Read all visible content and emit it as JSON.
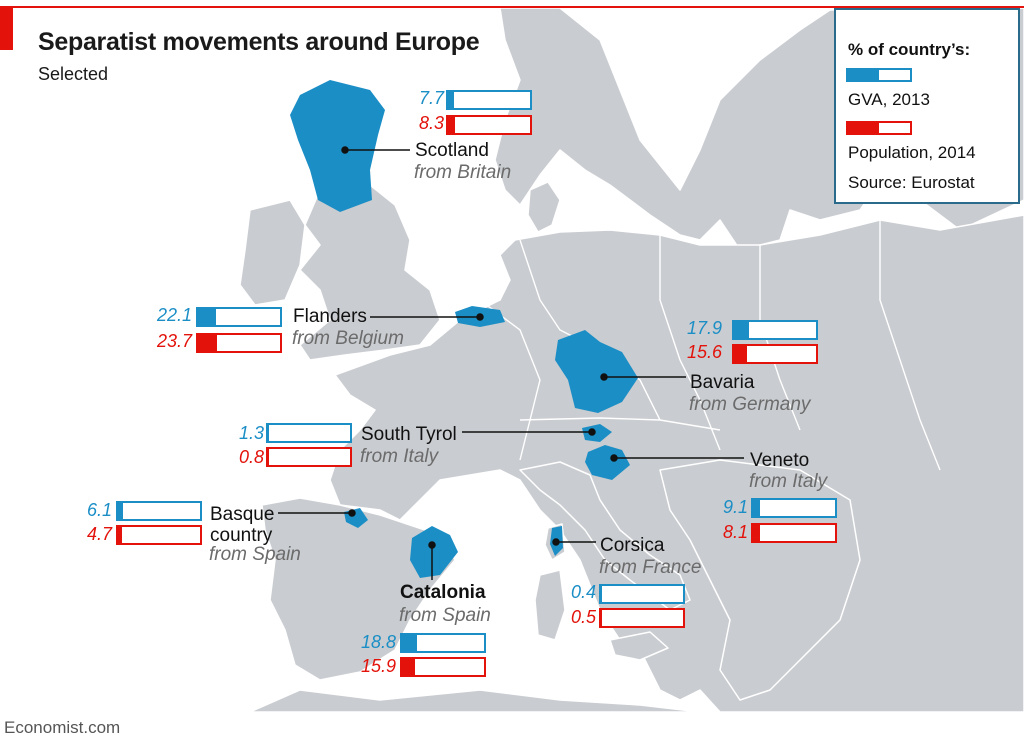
{
  "title": "Separatist movements around Europe",
  "subtitle": "Selected",
  "source_credit": "Economist.com",
  "colors": {
    "gva": "#1b8ec6",
    "population": "#e3120b",
    "land": "#c9ccd0",
    "sea": "#ffffff",
    "highlight": "#1b8ec6"
  },
  "legend": {
    "title": "% of country’s:",
    "gva_label": "GVA, 2013",
    "population_label": "Population, 2014",
    "source": "Source: Eurostat"
  },
  "regions": [
    {
      "id": "scotland",
      "name": "Scotland",
      "from": "from Britain",
      "gva": 7.7,
      "gva_text": "7.7",
      "population": 8.3,
      "pop_text": "8.3",
      "emphasis": false
    },
    {
      "id": "flanders",
      "name": "Flanders",
      "from": "from Belgium",
      "gva": 22.1,
      "gva_text": "22.1",
      "population": 23.7,
      "pop_text": "23.7",
      "emphasis": false
    },
    {
      "id": "bavaria",
      "name": "Bavaria",
      "from": "from Germany",
      "gva": 17.9,
      "gva_text": "17.9",
      "population": 15.6,
      "pop_text": "15.6",
      "emphasis": false
    },
    {
      "id": "south_tyrol",
      "name": "South Tyrol",
      "from": "from Italy",
      "gva": 1.3,
      "gva_text": "1.3",
      "population": 0.8,
      "pop_text": "0.8",
      "emphasis": false
    },
    {
      "id": "veneto",
      "name": "Veneto",
      "from": "from Italy",
      "gva": 9.1,
      "gva_text": "9.1",
      "population": 8.1,
      "pop_text": "8.1",
      "emphasis": false
    },
    {
      "id": "basque",
      "name": "Basque country",
      "from": "from Spain",
      "gva": 6.1,
      "gva_text": "6.1",
      "population": 4.7,
      "pop_text": "4.7",
      "emphasis": false
    },
    {
      "id": "corsica",
      "name": "Corsica",
      "from": "from France",
      "gva": 0.4,
      "gva_text": "0.4",
      "population": 0.5,
      "pop_text": "0.5",
      "emphasis": false
    },
    {
      "id": "catalonia",
      "name": "Catalonia",
      "from": "from Spain",
      "gva": 18.8,
      "gva_text": "18.8",
      "population": 15.9,
      "pop_text": "15.9",
      "emphasis": true
    }
  ],
  "chart_data": {
    "type": "bar",
    "categories": [
      "Scotland",
      "Flanders",
      "Bavaria",
      "South Tyrol",
      "Veneto",
      "Basque country",
      "Corsica",
      "Catalonia"
    ],
    "series": [
      {
        "name": "GVA, 2013",
        "values": [
          7.7,
          22.1,
          17.9,
          1.3,
          9.1,
          6.1,
          0.4,
          18.8
        ]
      },
      {
        "name": "Population, 2014",
        "values": [
          8.3,
          23.7,
          15.6,
          0.8,
          8.1,
          4.7,
          0.5,
          15.9
        ]
      }
    ],
    "title": "Separatist movements around Europe",
    "subtitle": "Selected",
    "ylim": [
      0,
      100
    ]
  }
}
